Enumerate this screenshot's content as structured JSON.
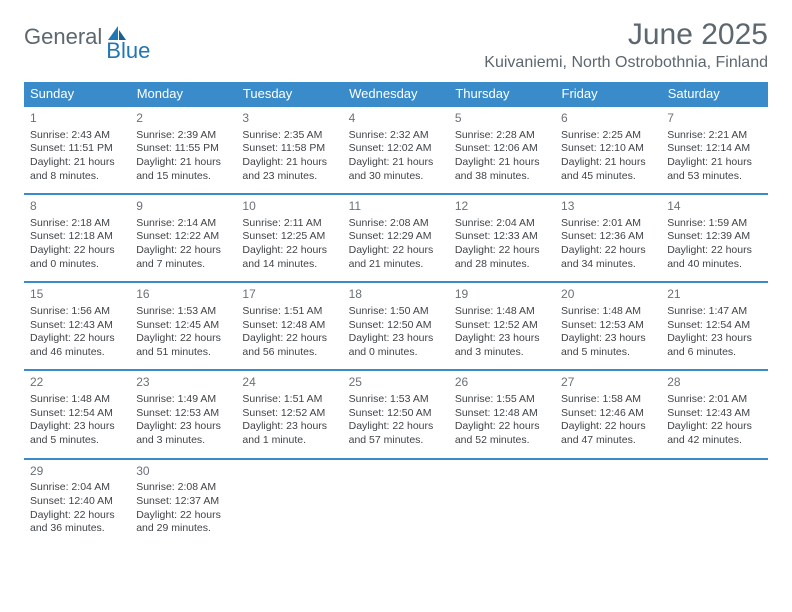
{
  "brand": {
    "part1": "General",
    "part2": "Blue"
  },
  "header": {
    "title": "June 2025",
    "location": "Kuivaniemi, North Ostrobothnia, Finland"
  },
  "colors": {
    "header_bg": "#3a8bc9",
    "header_text": "#ffffff",
    "brand_gray": "#5d6770",
    "brand_blue": "#2176b6",
    "text": "#404448",
    "daynum": "#6b7178",
    "page_bg": "#ffffff"
  },
  "dow": [
    "Sunday",
    "Monday",
    "Tuesday",
    "Wednesday",
    "Thursday",
    "Friday",
    "Saturday"
  ],
  "weeks": [
    [
      {
        "n": "1",
        "sr": "Sunrise: 2:43 AM",
        "ss": "Sunset: 11:51 PM",
        "dl": "Daylight: 21 hours and 8 minutes."
      },
      {
        "n": "2",
        "sr": "Sunrise: 2:39 AM",
        "ss": "Sunset: 11:55 PM",
        "dl": "Daylight: 21 hours and 15 minutes."
      },
      {
        "n": "3",
        "sr": "Sunrise: 2:35 AM",
        "ss": "Sunset: 11:58 PM",
        "dl": "Daylight: 21 hours and 23 minutes."
      },
      {
        "n": "4",
        "sr": "Sunrise: 2:32 AM",
        "ss": "Sunset: 12:02 AM",
        "dl": "Daylight: 21 hours and 30 minutes."
      },
      {
        "n": "5",
        "sr": "Sunrise: 2:28 AM",
        "ss": "Sunset: 12:06 AM",
        "dl": "Daylight: 21 hours and 38 minutes."
      },
      {
        "n": "6",
        "sr": "Sunrise: 2:25 AM",
        "ss": "Sunset: 12:10 AM",
        "dl": "Daylight: 21 hours and 45 minutes."
      },
      {
        "n": "7",
        "sr": "Sunrise: 2:21 AM",
        "ss": "Sunset: 12:14 AM",
        "dl": "Daylight: 21 hours and 53 minutes."
      }
    ],
    [
      {
        "n": "8",
        "sr": "Sunrise: 2:18 AM",
        "ss": "Sunset: 12:18 AM",
        "dl": "Daylight: 22 hours and 0 minutes."
      },
      {
        "n": "9",
        "sr": "Sunrise: 2:14 AM",
        "ss": "Sunset: 12:22 AM",
        "dl": "Daylight: 22 hours and 7 minutes."
      },
      {
        "n": "10",
        "sr": "Sunrise: 2:11 AM",
        "ss": "Sunset: 12:25 AM",
        "dl": "Daylight: 22 hours and 14 minutes."
      },
      {
        "n": "11",
        "sr": "Sunrise: 2:08 AM",
        "ss": "Sunset: 12:29 AM",
        "dl": "Daylight: 22 hours and 21 minutes."
      },
      {
        "n": "12",
        "sr": "Sunrise: 2:04 AM",
        "ss": "Sunset: 12:33 AM",
        "dl": "Daylight: 22 hours and 28 minutes."
      },
      {
        "n": "13",
        "sr": "Sunrise: 2:01 AM",
        "ss": "Sunset: 12:36 AM",
        "dl": "Daylight: 22 hours and 34 minutes."
      },
      {
        "n": "14",
        "sr": "Sunrise: 1:59 AM",
        "ss": "Sunset: 12:39 AM",
        "dl": "Daylight: 22 hours and 40 minutes."
      }
    ],
    [
      {
        "n": "15",
        "sr": "Sunrise: 1:56 AM",
        "ss": "Sunset: 12:43 AM",
        "dl": "Daylight: 22 hours and 46 minutes."
      },
      {
        "n": "16",
        "sr": "Sunrise: 1:53 AM",
        "ss": "Sunset: 12:45 AM",
        "dl": "Daylight: 22 hours and 51 minutes."
      },
      {
        "n": "17",
        "sr": "Sunrise: 1:51 AM",
        "ss": "Sunset: 12:48 AM",
        "dl": "Daylight: 22 hours and 56 minutes."
      },
      {
        "n": "18",
        "sr": "Sunrise: 1:50 AM",
        "ss": "Sunset: 12:50 AM",
        "dl": "Daylight: 23 hours and 0 minutes."
      },
      {
        "n": "19",
        "sr": "Sunrise: 1:48 AM",
        "ss": "Sunset: 12:52 AM",
        "dl": "Daylight: 23 hours and 3 minutes."
      },
      {
        "n": "20",
        "sr": "Sunrise: 1:48 AM",
        "ss": "Sunset: 12:53 AM",
        "dl": "Daylight: 23 hours and 5 minutes."
      },
      {
        "n": "21",
        "sr": "Sunrise: 1:47 AM",
        "ss": "Sunset: 12:54 AM",
        "dl": "Daylight: 23 hours and 6 minutes."
      }
    ],
    [
      {
        "n": "22",
        "sr": "Sunrise: 1:48 AM",
        "ss": "Sunset: 12:54 AM",
        "dl": "Daylight: 23 hours and 5 minutes."
      },
      {
        "n": "23",
        "sr": "Sunrise: 1:49 AM",
        "ss": "Sunset: 12:53 AM",
        "dl": "Daylight: 23 hours and 3 minutes."
      },
      {
        "n": "24",
        "sr": "Sunrise: 1:51 AM",
        "ss": "Sunset: 12:52 AM",
        "dl": "Daylight: 23 hours and 1 minute."
      },
      {
        "n": "25",
        "sr": "Sunrise: 1:53 AM",
        "ss": "Sunset: 12:50 AM",
        "dl": "Daylight: 22 hours and 57 minutes."
      },
      {
        "n": "26",
        "sr": "Sunrise: 1:55 AM",
        "ss": "Sunset: 12:48 AM",
        "dl": "Daylight: 22 hours and 52 minutes."
      },
      {
        "n": "27",
        "sr": "Sunrise: 1:58 AM",
        "ss": "Sunset: 12:46 AM",
        "dl": "Daylight: 22 hours and 47 minutes."
      },
      {
        "n": "28",
        "sr": "Sunrise: 2:01 AM",
        "ss": "Sunset: 12:43 AM",
        "dl": "Daylight: 22 hours and 42 minutes."
      }
    ],
    [
      {
        "n": "29",
        "sr": "Sunrise: 2:04 AM",
        "ss": "Sunset: 12:40 AM",
        "dl": "Daylight: 22 hours and 36 minutes."
      },
      {
        "n": "30",
        "sr": "Sunrise: 2:08 AM",
        "ss": "Sunset: 12:37 AM",
        "dl": "Daylight: 22 hours and 29 minutes."
      },
      null,
      null,
      null,
      null,
      null
    ]
  ]
}
